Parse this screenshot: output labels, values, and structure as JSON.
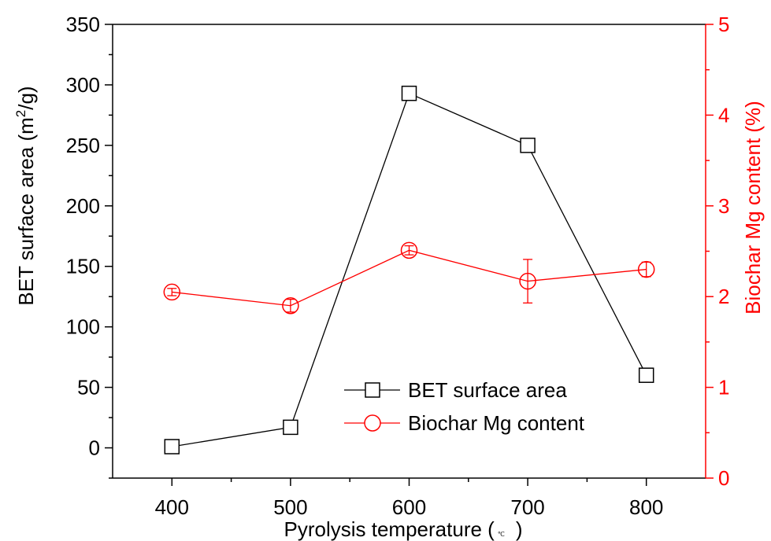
{
  "chart_data": {
    "type": "line",
    "x": [
      400,
      500,
      600,
      700,
      800
    ],
    "xlim": [
      350,
      850
    ],
    "xticks": [
      "400",
      "500",
      "600",
      "700",
      "800"
    ],
    "xlabel_text": "Pyrolysis temperature (",
    "xlabel_unit": "℃",
    "xlabel_close": ")",
    "left_axis": {
      "label_main": "BET surface area (m",
      "label_sup": "2",
      "label_end": "/g)",
      "ylim": [
        -25,
        350
      ],
      "ticks": [
        "0",
        "50",
        "100",
        "150",
        "200",
        "250",
        "300",
        "350"
      ],
      "color": "#000000"
    },
    "right_axis": {
      "label": "Biochar Mg content (%)",
      "ylim": [
        0,
        5
      ],
      "ticks": [
        "0",
        "1",
        "2",
        "3",
        "4",
        "5"
      ],
      "color": "#ff0000"
    },
    "series": [
      {
        "name": "BET surface area",
        "axis": "left",
        "marker": "square",
        "color": "#000000",
        "values": [
          1,
          17,
          293,
          250,
          60
        ]
      },
      {
        "name": "Biochar Mg content",
        "axis": "right",
        "marker": "circle",
        "color": "#ff0000",
        "values": [
          2.05,
          1.9,
          2.51,
          2.17,
          2.3
        ],
        "errors": [
          0.04,
          0.07,
          0.05,
          0.24,
          0.08
        ]
      }
    ],
    "legend_position": "bottom-right"
  }
}
